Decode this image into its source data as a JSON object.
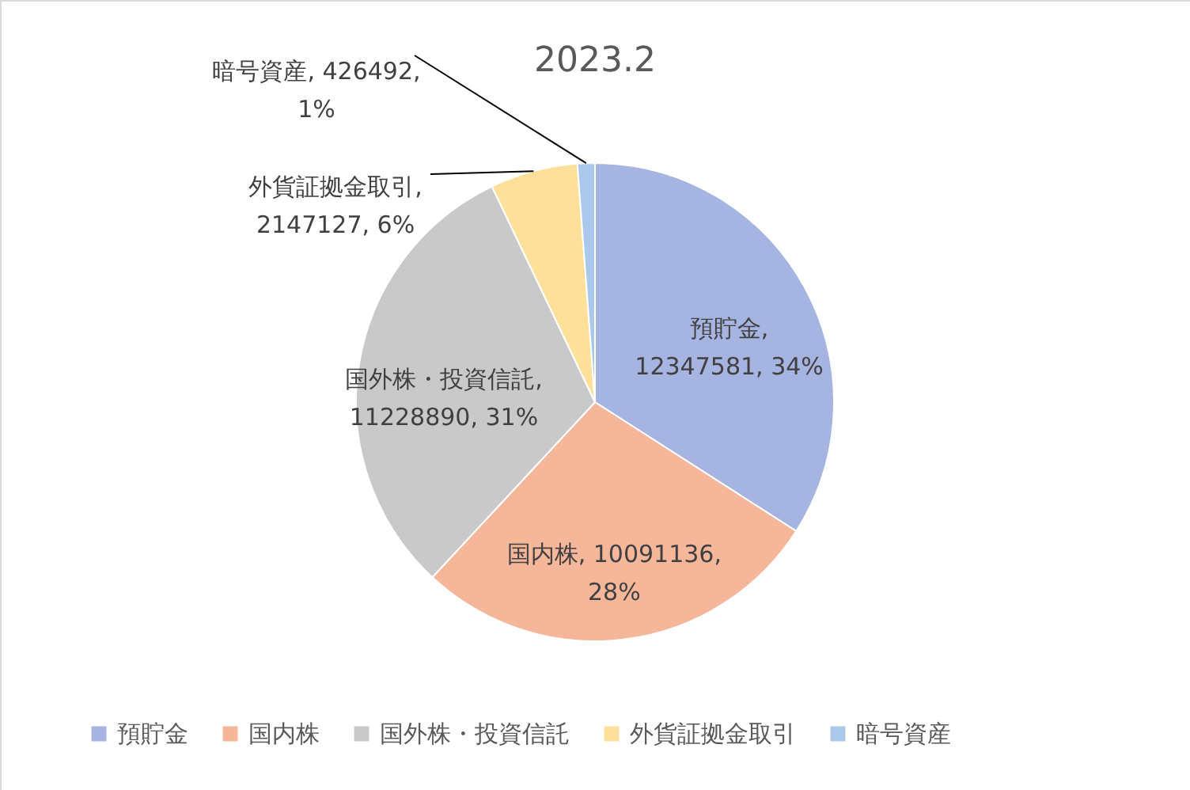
{
  "chart_data": {
    "type": "pie",
    "title": "2023.2",
    "categories": [
      "預貯金",
      "国内株",
      "国外株・投資信託",
      "外貨証拠金取引",
      "暗号資産"
    ],
    "values": [
      12347581,
      10091136,
      11228890,
      2147127,
      426492
    ],
    "colors": [
      "#a5b4e0",
      "#f6b69a",
      "#c9c9c9",
      "#ffe09a",
      "#a9c8ea"
    ],
    "value_labels": [
      "預貯金,\n12347581, 34%",
      "国内株, 10091136,\n28%",
      "国外株・投資信託,\n11228890, 31%",
      "外貨証拠金取引,\n2147127, 6%",
      "暗号資産, 426492,\n1%"
    ],
    "legend": "bottom"
  }
}
